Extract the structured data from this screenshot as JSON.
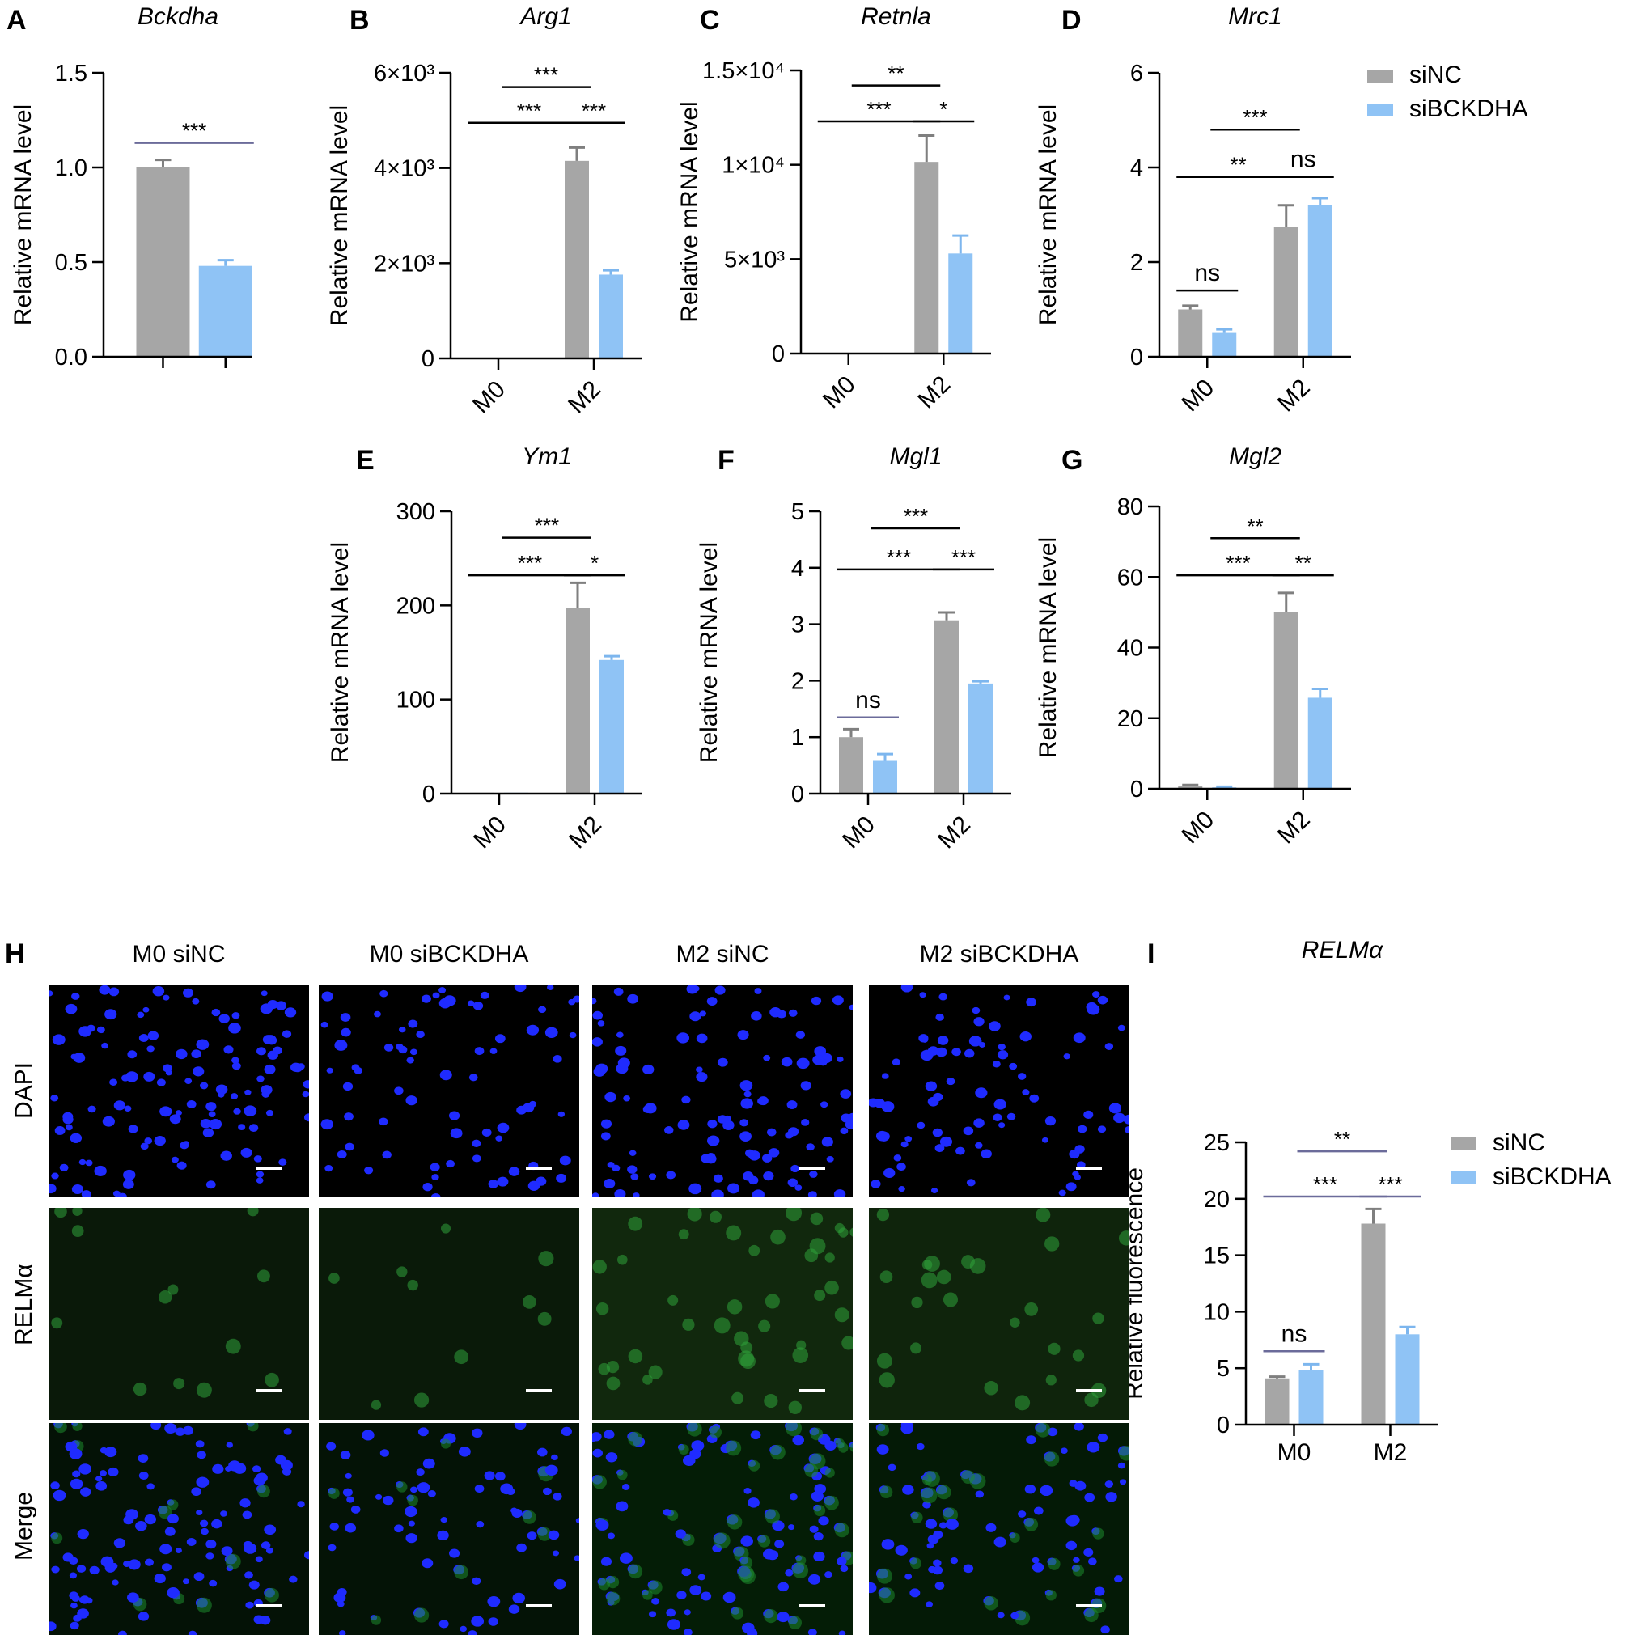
{
  "colors": {
    "siNC": "#a6a6a6",
    "siBCKDHA": "#8fc3f5",
    "errbar_siNC": "#7f7f7f",
    "errbar_siBCKDHA": "#7db6ee",
    "sigline": "#6b6b9a"
  },
  "legend": [
    {
      "key": "siNC",
      "label": "siNC"
    },
    {
      "key": "siBCKDHA",
      "label": "siBCKDHA"
    }
  ],
  "chart_data": [
    {
      "panel": "A",
      "type": "bar",
      "title": "Bckdha",
      "ylabel": "Relative mRNA level",
      "ylim": [
        0,
        1.5
      ],
      "yticks": [
        "0.0",
        "0.5",
        "1.0",
        "1.5"
      ],
      "ytick_values": [
        0,
        0.5,
        1.0,
        1.5
      ],
      "categories": [
        ""
      ],
      "series": [
        {
          "key": "siNC",
          "values": [
            1.0
          ],
          "err": [
            0.04
          ]
        },
        {
          "key": "siBCKDHA",
          "values": [
            0.48
          ],
          "err": [
            0.03
          ]
        }
      ],
      "sig": [
        {
          "from": [
            0,
            0
          ],
          "to": [
            0,
            1
          ],
          "label": "***",
          "level": 1.13
        }
      ]
    },
    {
      "panel": "B",
      "type": "bar",
      "title": "Arg1",
      "ylabel": "Relative mRNA level",
      "ylim": [
        0,
        6000
      ],
      "yticks": [
        "0",
        "2×10³",
        "4×10³",
        "6×10³"
      ],
      "ytick_values": [
        0,
        2000,
        4000,
        6000
      ],
      "categories": [
        "M0",
        "M2"
      ],
      "series": [
        {
          "key": "siNC",
          "values": [
            1,
            4150
          ],
          "err": [
            0,
            280
          ]
        },
        {
          "key": "siBCKDHA",
          "values": [
            1,
            1760
          ],
          "err": [
            0,
            90
          ]
        }
      ],
      "sig": [
        {
          "from": [
            0,
            0
          ],
          "to": [
            1,
            0
          ],
          "label": "***",
          "level": 4950
        },
        {
          "from": [
            1,
            0
          ],
          "to": [
            1,
            1
          ],
          "label": "***",
          "level": 4950
        },
        {
          "from": [
            0,
            1
          ],
          "to": [
            1,
            0
          ],
          "label": "***",
          "level": 5700
        }
      ]
    },
    {
      "panel": "C",
      "type": "bar",
      "title": "Retnla",
      "ylabel": "Relative mRNA level",
      "ylim": [
        0,
        15000
      ],
      "yticks": [
        "0",
        "5×10³",
        "1×10⁴",
        "1.5×10⁴"
      ],
      "ytick_values": [
        0,
        5000,
        10000,
        15000
      ],
      "categories": [
        "M0",
        "M2"
      ],
      "series": [
        {
          "key": "siNC",
          "values": [
            1,
            10150
          ],
          "err": [
            0,
            1400
          ]
        },
        {
          "key": "siBCKDHA",
          "values": [
            1,
            5300
          ],
          "err": [
            0,
            950
          ]
        }
      ],
      "sig": [
        {
          "from": [
            0,
            0
          ],
          "to": [
            1,
            0
          ],
          "label": "***",
          "level": 12300
        },
        {
          "from": [
            1,
            0
          ],
          "to": [
            1,
            1
          ],
          "label": "*",
          "level": 12300
        },
        {
          "from": [
            0,
            1
          ],
          "to": [
            1,
            0
          ],
          "label": "**",
          "level": 14200
        }
      ]
    },
    {
      "panel": "D",
      "type": "bar",
      "title": "Mrc1",
      "ylabel": "Relative mRNA level",
      "ylim": [
        0,
        6
      ],
      "yticks": [
        "0",
        "2",
        "4",
        "6"
      ],
      "ytick_values": [
        0,
        2,
        4,
        6
      ],
      "categories": [
        "M0",
        "M2"
      ],
      "series": [
        {
          "key": "siNC",
          "values": [
            1.0,
            2.75
          ],
          "err": [
            0.08,
            0.45
          ]
        },
        {
          "key": "siBCKDHA",
          "values": [
            0.52,
            3.2
          ],
          "err": [
            0.06,
            0.15
          ]
        }
      ],
      "sig": [
        {
          "from": [
            0,
            0
          ],
          "to": [
            0,
            1
          ],
          "label": "ns",
          "level": 1.4
        },
        {
          "from": [
            0,
            0
          ],
          "to": [
            1,
            0
          ],
          "label": "**",
          "level": 3.8
        },
        {
          "from": [
            1,
            0
          ],
          "to": [
            1,
            1
          ],
          "label": "ns",
          "level": 3.8
        },
        {
          "from": [
            0,
            1
          ],
          "to": [
            1,
            0
          ],
          "label": "***",
          "level": 4.8
        }
      ]
    },
    {
      "panel": "E",
      "type": "bar",
      "title": "Ym1",
      "ylabel": "Relative mRNA level",
      "ylim": [
        0,
        300
      ],
      "yticks": [
        "0",
        "100",
        "200",
        "300"
      ],
      "ytick_values": [
        0,
        100,
        200,
        300
      ],
      "categories": [
        "M0",
        "M2"
      ],
      "series": [
        {
          "key": "siNC",
          "values": [
            1,
            197
          ],
          "err": [
            0,
            27
          ]
        },
        {
          "key": "siBCKDHA",
          "values": [
            1,
            142
          ],
          "err": [
            0,
            4
          ]
        }
      ],
      "sig": [
        {
          "from": [
            0,
            0
          ],
          "to": [
            1,
            0
          ],
          "label": "***",
          "level": 232
        },
        {
          "from": [
            1,
            0
          ],
          "to": [
            1,
            1
          ],
          "label": "*",
          "level": 232
        },
        {
          "from": [
            0,
            1
          ],
          "to": [
            1,
            0
          ],
          "label": "***",
          "level": 272
        }
      ]
    },
    {
      "panel": "F",
      "type": "bar",
      "title": "Mgl1",
      "ylabel": "Relative mRNA level",
      "ylim": [
        0,
        5
      ],
      "yticks": [
        "0",
        "1",
        "2",
        "3",
        "4",
        "5"
      ],
      "ytick_values": [
        0,
        1,
        2,
        3,
        4,
        5
      ],
      "categories": [
        "M0",
        "M2"
      ],
      "series": [
        {
          "key": "siNC",
          "values": [
            1.0,
            3.07
          ],
          "err": [
            0.14,
            0.14
          ]
        },
        {
          "key": "siBCKDHA",
          "values": [
            0.58,
            1.95
          ],
          "err": [
            0.12,
            0.04
          ]
        }
      ],
      "sig": [
        {
          "from": [
            0,
            0
          ],
          "to": [
            0,
            1
          ],
          "label": "ns",
          "level": 1.35
        },
        {
          "from": [
            0,
            0
          ],
          "to": [
            1,
            0
          ],
          "label": "***",
          "level": 3.97
        },
        {
          "from": [
            1,
            0
          ],
          "to": [
            1,
            1
          ],
          "label": "***",
          "level": 3.97
        },
        {
          "from": [
            0,
            1
          ],
          "to": [
            1,
            0
          ],
          "label": "***",
          "level": 4.7
        }
      ]
    },
    {
      "panel": "G",
      "type": "bar",
      "title": "Mgl2",
      "ylabel": "Relative mRNA level",
      "ylim": [
        0,
        80
      ],
      "yticks": [
        "0",
        "20",
        "40",
        "60",
        "80"
      ],
      "ytick_values": [
        0,
        20,
        40,
        60,
        80
      ],
      "categories": [
        "M0",
        "M2"
      ],
      "series": [
        {
          "key": "siNC",
          "values": [
            0.8,
            50
          ],
          "err": [
            0.3,
            5.5
          ]
        },
        {
          "key": "siBCKDHA",
          "values": [
            0.4,
            25.8
          ],
          "err": [
            0.2,
            2.5
          ]
        }
      ],
      "sig": [
        {
          "from": [
            0,
            0
          ],
          "to": [
            1,
            0
          ],
          "label": "***",
          "level": 60.5
        },
        {
          "from": [
            1,
            0
          ],
          "to": [
            1,
            1
          ],
          "label": "**",
          "level": 60.5
        },
        {
          "from": [
            0,
            1
          ],
          "to": [
            1,
            0
          ],
          "label": "**",
          "level": 71
        }
      ]
    },
    {
      "panel": "I",
      "type": "bar",
      "title": "RELMα",
      "ylabel": "Relative fluorescence",
      "ylim": [
        0,
        25
      ],
      "yticks": [
        "0",
        "5",
        "10",
        "15",
        "20",
        "25"
      ],
      "ytick_values": [
        0,
        5,
        10,
        15,
        20,
        25
      ],
      "categories": [
        "M0",
        "M2"
      ],
      "series": [
        {
          "key": "siNC",
          "values": [
            4.1,
            17.8
          ],
          "err": [
            0.15,
            1.3
          ]
        },
        {
          "key": "siBCKDHA",
          "values": [
            4.8,
            8.0
          ],
          "err": [
            0.55,
            0.65
          ]
        }
      ],
      "sig": [
        {
          "from": [
            0,
            0
          ],
          "to": [
            0,
            1
          ],
          "label": "ns",
          "level": 6.5
        },
        {
          "from": [
            0,
            0
          ],
          "to": [
            1,
            0
          ],
          "label": "***",
          "level": 20.2
        },
        {
          "from": [
            1,
            0
          ],
          "to": [
            1,
            1
          ],
          "label": "***",
          "level": 20.2
        },
        {
          "from": [
            0,
            1
          ],
          "to": [
            1,
            0
          ],
          "label": "**",
          "level": 24.2
        }
      ]
    }
  ],
  "microscopy": {
    "panel": "H",
    "columns": [
      "M0 siNC",
      "M0 siBCKDHA",
      "M2 siNC",
      "M2 siBCKDHA"
    ],
    "rows": [
      "DAPI",
      "RELMα",
      "Merge"
    ],
    "green_level": [
      0.08,
      0.1,
      0.45,
      0.35
    ],
    "nuclei_count": [
      120,
      75,
      110,
      85
    ]
  },
  "panel_letters": {
    "H": "H",
    "I": "I"
  }
}
